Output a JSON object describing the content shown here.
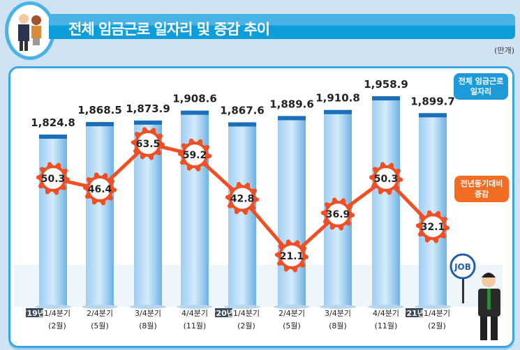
{
  "header": {
    "title": "전체 임금근로 일자리 및 증감 추이",
    "unit": "(만개)"
  },
  "legend": {
    "jobs": "전체 임금근로 일자리",
    "change": "전년동기대비 증감"
  },
  "job_sign": "JOB",
  "chart_data": {
    "type": "bar+line",
    "categories": [
      {
        "year": "'19년",
        "quarter": "1/4분기",
        "month": "(2월)"
      },
      {
        "year": "",
        "quarter": "2/4분기",
        "month": "(5월)"
      },
      {
        "year": "",
        "quarter": "3/4분기",
        "month": "(8월)"
      },
      {
        "year": "",
        "quarter": "4/4분기",
        "month": "(11월)"
      },
      {
        "year": "'20년",
        "quarter": "1/4분기",
        "month": "(2월)"
      },
      {
        "year": "",
        "quarter": "2/4분기",
        "month": "(5월)"
      },
      {
        "year": "",
        "quarter": "3/4분기",
        "month": "(8월)"
      },
      {
        "year": "",
        "quarter": "4/4분기",
        "month": "(11월)"
      },
      {
        "year": "'21년",
        "quarter": "1/4분기",
        "month": "(2월)"
      }
    ],
    "series": [
      {
        "name": "전체 임금근로 일자리",
        "type": "bar",
        "values": [
          1824.8,
          1868.5,
          1873.9,
          1908.6,
          1867.6,
          1889.6,
          1910.8,
          1958.9,
          1899.7
        ],
        "labels": [
          "1,824.8",
          "1,868.5",
          "1,873.9",
          "1,908.6",
          "1,867.6",
          "1,889.6",
          "1,910.8",
          "1,958.9",
          "1,899.7"
        ],
        "color": "#7fb9e6"
      },
      {
        "name": "전년동기대비 증감",
        "type": "line",
        "values": [
          50.3,
          46.4,
          63.5,
          59.2,
          42.8,
          21.1,
          36.9,
          50.3,
          32.1
        ],
        "labels": [
          "50.3",
          "46.4",
          "63.5",
          "59.2",
          "42.8",
          "21.1",
          "36.9",
          "50.3",
          "32.1"
        ],
        "color": "#f04e23"
      }
    ]
  }
}
